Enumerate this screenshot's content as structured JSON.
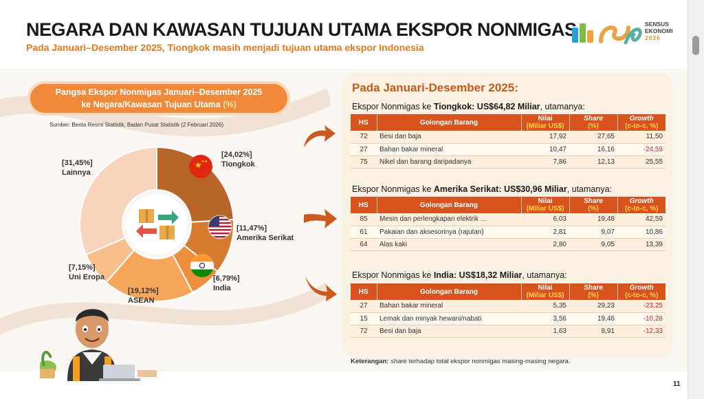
{
  "header": {
    "title": "NEGARA DAN KAWASAN TUJUAN UTAMA EKSPOR NONMIGAS",
    "subtitle": "Pada Januari–Desember 2025, Tiongkok masih menjadi tujuan utama ekspor Indonesia"
  },
  "logo": {
    "line1": "SENSUS",
    "line2": "EKONOMI",
    "line3": "2026"
  },
  "colors": {
    "accent": "#d9531f",
    "pill": "#f08a3a",
    "card_title": "#c65a1a",
    "negative": "#c62828"
  },
  "pie_panel": {
    "title_line1": "Pangsa Ekspor Nonmigas Januari–Desember 2025",
    "title_line2": "ke Negara/Kawasan Tujuan Utama",
    "title_pct": "(%)",
    "source": "Sumber: Berita Resmi Statistik, Badan Pusat Statistik (2 Februari 2026)"
  },
  "chart_data": [
    {
      "type": "pie",
      "title": "Pangsa Ekspor Nonmigas Januari–Desember 2025 ke Negara/Kawasan Tujuan Utama (%)",
      "slices": [
        {
          "label": "Tiongkok",
          "value": 24.02,
          "value_label": "[24,02%]",
          "color": "#b8652a"
        },
        {
          "label": "Amerika Serikat",
          "value": 11.47,
          "value_label": "[11,47%]",
          "color": "#d67a2f"
        },
        {
          "label": "India",
          "value": 6.79,
          "value_label": "[6,79%]",
          "color": "#ec8e3c"
        },
        {
          "label": "ASEAN",
          "value": 19.12,
          "value_label": "[19,12%]",
          "color": "#f6a65a"
        },
        {
          "label": "Uni Eropa",
          "value": 7.15,
          "value_label": "[7,15%]",
          "color": "#f8bf8c"
        },
        {
          "label": "Lainnya",
          "value": 31.45,
          "value_label": "[31,45%]",
          "color": "#f9d3bb"
        }
      ]
    },
    {
      "type": "table",
      "title": "Ekspor Nonmigas ke Tiongkok: US$64,82 Miliar, utamanya:",
      "columns": [
        "HS",
        "Golongan Barang",
        "Nilai (Miliar US$)",
        "Share (%)",
        "Growth (c-to-c, %)"
      ],
      "rows": [
        [
          "72",
          "Besi dan baja",
          "17,92",
          "27,65",
          "11,50"
        ],
        [
          "27",
          "Bahan bakar mineral",
          "10,47",
          "16,16",
          "-24,59"
        ],
        [
          "75",
          "Nikel dan barang daripadanya",
          "7,86",
          "12,13",
          "25,55"
        ]
      ]
    },
    {
      "type": "table",
      "title": "Ekspor Nonmigas ke Amerika Serikat: US$30,96 Miliar, utamanya:",
      "columns": [
        "HS",
        "Golongan Barang",
        "Nilai (Miliar US$)",
        "Share (%)",
        "Growth (c-to-c, %)"
      ],
      "rows": [
        [
          "85",
          "Mesin dan perlengkapan elektrik ...",
          "6,03",
          "19,48",
          "42,59"
        ],
        [
          "61",
          "Pakaian dan aksesorinya (rajutan)",
          "2,81",
          "9,07",
          "10,86"
        ],
        [
          "64",
          "Alas kaki",
          "2,80",
          "9,05",
          "13,39"
        ]
      ]
    },
    {
      "type": "table",
      "title": "Ekspor Nonmigas ke India: US$18,32 Miliar, utamanya:",
      "columns": [
        "HS",
        "Golongan Barang",
        "Nilai (Miliar US$)",
        "Share (%)",
        "Growth (c-to-c, %)"
      ],
      "rows": [
        [
          "27",
          "Bahan bakar mineral",
          "5,35",
          "29,23",
          "-23,25"
        ],
        [
          "15",
          "Lemak dan minyak hewani/nabati",
          "3,56",
          "19,46",
          "-10,28"
        ],
        [
          "72",
          "Besi dan baja",
          "1,63",
          "8,91",
          "-12,33"
        ]
      ]
    }
  ],
  "right_panel": {
    "heading": "Pada Januari-Desember 2025:",
    "th": {
      "hs": "HS",
      "name": "Golongan Barang",
      "nilai": "Nilai",
      "nilai_sub": "(Miliar US$)",
      "share": "Share",
      "share_sub": "(%)",
      "growth": "Growth",
      "growth_sub": "(c-to-c, %)"
    },
    "sections": [
      {
        "prefix": "Ekspor Nonmigas ke ",
        "country": "Tiongkok",
        "mid": ": ",
        "value": "US$64,82 Miliar",
        "suffix": ", utamanya:"
      },
      {
        "prefix": "Ekspor Nonmigas ke ",
        "country": "Amerika Serikat",
        "mid": ": ",
        "value": "US$30,96 Miliar",
        "suffix": ", utamanya:"
      },
      {
        "prefix": "Ekspor Nonmigas ke ",
        "country": "India",
        "mid": ": ",
        "value": "US$18,32 Miliar",
        "suffix": ", utamanya:"
      }
    ],
    "note_label": "Keterangan:",
    "note_term": "share",
    "note_text": " terhadap total ekspor nonmigas masing-masing negara."
  },
  "page": {
    "number": "11"
  }
}
